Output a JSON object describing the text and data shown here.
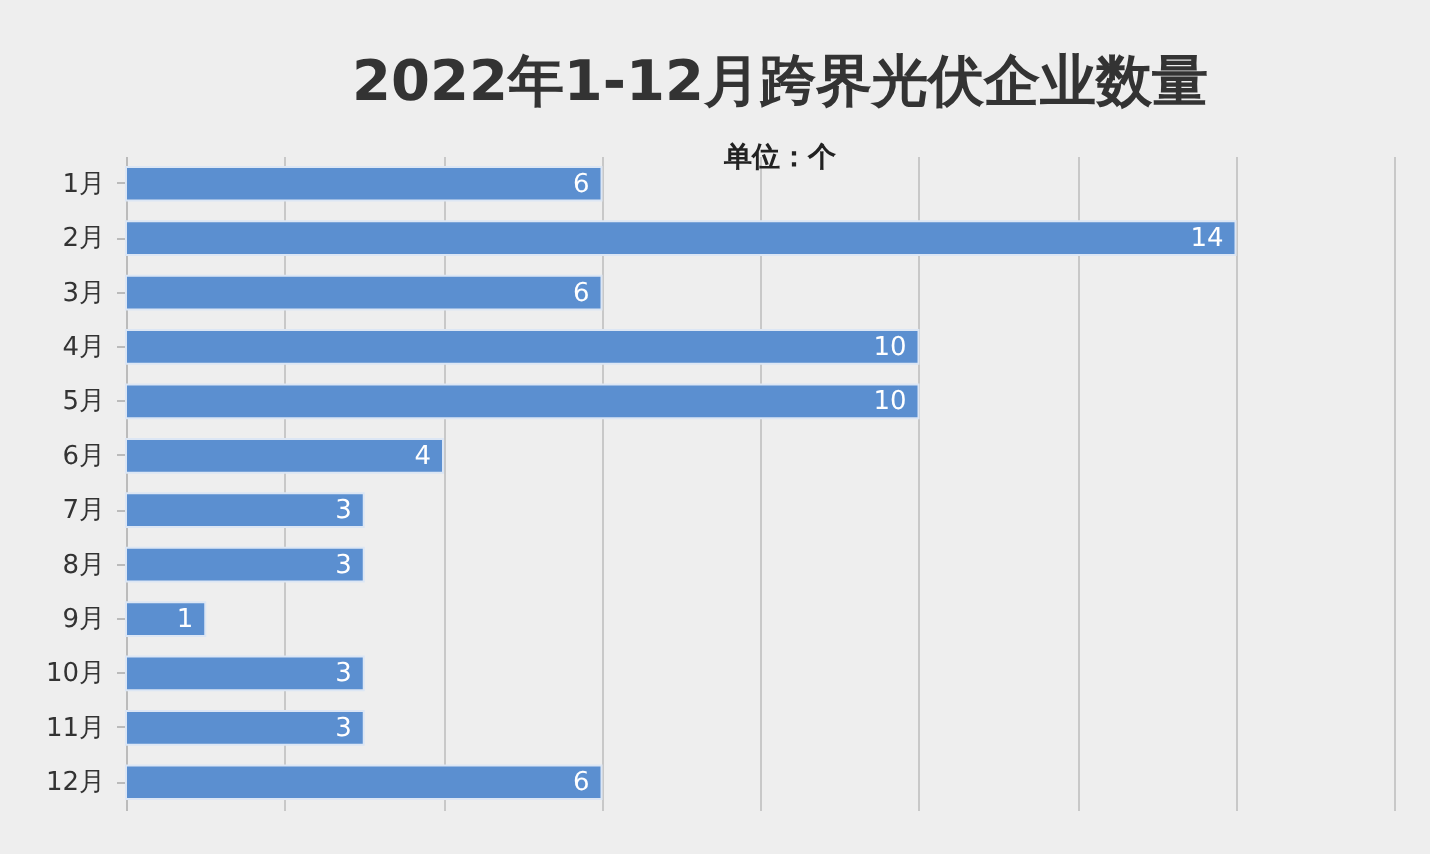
{
  "chart_data": {
    "type": "bar",
    "orientation": "horizontal",
    "title": "2022年1-12月跨界光伏企业数量",
    "subtitle": "单位：个",
    "categories": [
      "1月",
      "2月",
      "3月",
      "4月",
      "5月",
      "6月",
      "7月",
      "8月",
      "9月",
      "10月",
      "11月",
      "12月"
    ],
    "values": [
      6,
      14,
      6,
      10,
      10,
      4,
      3,
      3,
      1,
      3,
      3,
      6
    ],
    "color": "#5b8fd0",
    "xlim": [
      0,
      16
    ],
    "xticks": [
      {
        "value": 0,
        "label": null
      },
      {
        "value": 2,
        "label": null
      },
      {
        "value": 4,
        "label": null
      },
      {
        "value": 6,
        "label": null
      },
      {
        "value": 8,
        "label": null
      },
      {
        "value": 10,
        "label": null
      },
      {
        "value": 12,
        "label": null
      },
      {
        "value": 14,
        "label": null
      },
      {
        "value": 16,
        "label": null
      }
    ],
    "grid": "x",
    "data_labels": true,
    "tick_labels": "y"
  }
}
